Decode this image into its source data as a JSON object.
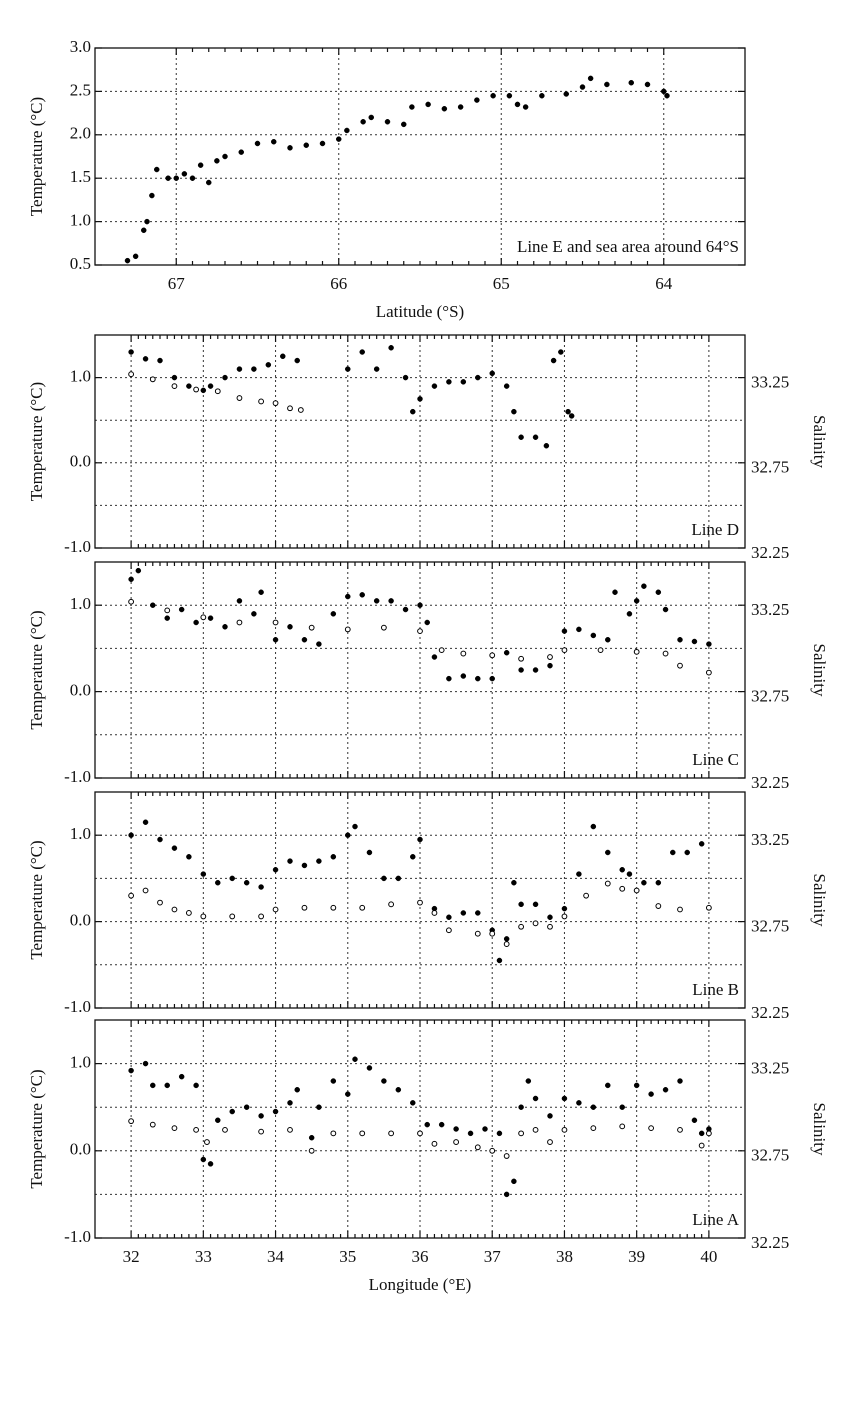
{
  "chart_data": [
    {
      "type": "scatter",
      "xlabel": "Latitude (°S)",
      "ylabel": "Temperature (°C)",
      "annotation": "Line E and sea area around 64°S",
      "xlim": [
        67.5,
        63.5
      ],
      "xticks": [
        67,
        66,
        65,
        64
      ],
      "xtick_labels": true,
      "ylim": [
        0.5,
        3.0
      ],
      "yticks": [
        0.5,
        {
          "value": 1,
          "label": "1.0"
        },
        1.5,
        {
          "value": 2,
          "label": "2.0"
        },
        2.5,
        {
          "value": 3,
          "label": "3.0"
        }
      ],
      "grid": true,
      "minor_grid": false,
      "series": [
        {
          "color": "#000000",
          "marker": "filled",
          "x": [
            67.3,
            67.25,
            67.2,
            67.18,
            67.15,
            67.12,
            67.05,
            67.0,
            66.95,
            66.9,
            66.85,
            66.8,
            66.75,
            66.7,
            66.6,
            66.5,
            66.4,
            66.3,
            66.2,
            66.1,
            66.0,
            65.95,
            65.85,
            65.8,
            65.7,
            65.6,
            65.55,
            65.45,
            65.35,
            65.25,
            65.15,
            65.05,
            64.95,
            64.9,
            64.85,
            64.75,
            64.6,
            64.5,
            64.45,
            64.35,
            64.2,
            64.1,
            64.0,
            63.98
          ],
          "values": [
            0.55,
            0.6,
            0.9,
            1.0,
            1.3,
            1.6,
            1.5,
            1.5,
            1.55,
            1.5,
            1.65,
            1.45,
            1.7,
            1.75,
            1.8,
            1.9,
            1.92,
            1.85,
            1.88,
            1.9,
            1.95,
            2.05,
            2.15,
            2.2,
            2.15,
            2.12,
            2.32,
            2.35,
            2.3,
            2.32,
            2.4,
            2.45,
            2.45,
            2.35,
            2.32,
            2.45,
            2.47,
            2.55,
            2.65,
            2.58,
            2.6,
            2.58,
            2.5,
            2.45
          ]
        }
      ]
    },
    {
      "type": "scatter",
      "ylabel": "Temperature (°C)",
      "y2label": "Salinity",
      "annotation": "Line D",
      "xlim": [
        31.5,
        40.5
      ],
      "xticks": [
        32,
        33,
        34,
        35,
        36,
        37,
        38,
        39,
        40
      ],
      "xtick_labels": false,
      "ylim": [
        -1,
        1.5
      ],
      "yticks": [
        {
          "value": 1,
          "label": "1.0"
        },
        {
          "value": 0,
          "label": "0.0"
        },
        {
          "value": -1,
          "label": "-1.0"
        }
      ],
      "y2lim": [
        32.25,
        33.5
      ],
      "y2ticks": [
        33.25,
        32.75,
        32.25
      ],
      "grid": true,
      "minor_grid": true,
      "series": [
        {
          "color": "#000000",
          "marker": "filled",
          "x": [
            32.0,
            32.2,
            32.4,
            32.6,
            32.8,
            33.0,
            33.1,
            33.3,
            33.5,
            33.7,
            33.9,
            34.1,
            34.3,
            35.0,
            35.2,
            35.4,
            35.6,
            35.8,
            35.9,
            36.0,
            36.2,
            36.4,
            36.6,
            36.8,
            37.0,
            37.2,
            37.3,
            37.4,
            37.6,
            37.75,
            37.85,
            37.95,
            38.05,
            38.1
          ],
          "values": [
            1.3,
            1.22,
            1.2,
            1.0,
            0.9,
            0.85,
            0.9,
            1.0,
            1.1,
            1.1,
            1.15,
            1.25,
            1.2,
            1.1,
            1.3,
            1.1,
            1.35,
            1.0,
            0.6,
            0.75,
            0.9,
            0.95,
            0.95,
            1.0,
            1.05,
            0.9,
            0.6,
            0.3,
            0.3,
            0.2,
            1.2,
            1.3,
            0.6,
            0.55
          ]
        },
        {
          "color": "#000000",
          "marker": "open",
          "axis": "y2",
          "x": [
            32.0,
            32.3,
            32.6,
            32.9,
            33.2,
            33.5,
            33.8,
            34.0,
            34.2,
            34.35
          ],
          "values": [
            33.27,
            33.24,
            33.2,
            33.18,
            33.17,
            33.13,
            33.11,
            33.1,
            33.07,
            33.06
          ]
        }
      ]
    },
    {
      "type": "scatter",
      "ylabel": "Temperature (°C)",
      "y2label": "Salinity",
      "annotation": "Line C",
      "xlim": [
        31.5,
        40.5
      ],
      "xticks": [
        32,
        33,
        34,
        35,
        36,
        37,
        38,
        39,
        40
      ],
      "xtick_labels": false,
      "ylim": [
        -1,
        1.5
      ],
      "yticks": [
        {
          "value": 1,
          "label": "1.0"
        },
        {
          "value": 0,
          "label": "0.0"
        },
        {
          "value": -1,
          "label": "-1.0"
        }
      ],
      "y2lim": [
        32.25,
        33.5
      ],
      "y2ticks": [
        33.25,
        32.75,
        32.25
      ],
      "grid": true,
      "minor_grid": true,
      "series": [
        {
          "color": "#000000",
          "marker": "filled",
          "x": [
            32.0,
            32.1,
            32.3,
            32.5,
            32.7,
            32.9,
            33.1,
            33.3,
            33.5,
            33.7,
            33.8,
            34.0,
            34.2,
            34.4,
            34.6,
            34.8,
            35.0,
            35.2,
            35.4,
            35.6,
            35.8,
            36.0,
            36.1,
            36.2,
            36.4,
            36.6,
            36.8,
            37.0,
            37.2,
            37.4,
            37.6,
            37.8,
            38.0,
            38.2,
            38.4,
            38.6,
            38.7,
            38.9,
            39.0,
            39.1,
            39.3,
            39.4,
            39.6,
            39.8,
            40.0
          ],
          "values": [
            1.3,
            1.4,
            1.0,
            0.85,
            0.95,
            0.8,
            0.85,
            0.75,
            1.05,
            0.9,
            1.15,
            0.6,
            0.75,
            0.6,
            0.55,
            0.9,
            1.1,
            1.12,
            1.05,
            1.05,
            0.95,
            1.0,
            0.8,
            0.4,
            0.15,
            0.18,
            0.15,
            0.15,
            0.45,
            0.25,
            0.25,
            0.3,
            0.7,
            0.72,
            0.65,
            0.6,
            1.15,
            0.9,
            1.05,
            1.22,
            1.15,
            0.95,
            0.6,
            0.58,
            0.55
          ]
        },
        {
          "color": "#000000",
          "marker": "open",
          "axis": "y2",
          "x": [
            32.0,
            32.5,
            33.0,
            33.5,
            34.0,
            34.5,
            35.0,
            35.5,
            36.0,
            36.3,
            36.6,
            37.0,
            37.4,
            37.8,
            38.0,
            38.5,
            39.0,
            39.4,
            39.6,
            40.0
          ],
          "values": [
            33.27,
            33.22,
            33.18,
            33.15,
            33.15,
            33.12,
            33.11,
            33.12,
            33.1,
            32.99,
            32.97,
            32.96,
            32.94,
            32.95,
            32.99,
            32.99,
            32.98,
            32.97,
            32.9,
            32.86
          ]
        }
      ]
    },
    {
      "type": "scatter",
      "ylabel": "Temperature (°C)",
      "y2label": "Salinity",
      "annotation": "Line B",
      "xlim": [
        31.5,
        40.5
      ],
      "xticks": [
        32,
        33,
        34,
        35,
        36,
        37,
        38,
        39,
        40
      ],
      "xtick_labels": false,
      "ylim": [
        -1,
        1.5
      ],
      "yticks": [
        {
          "value": 1,
          "label": "1.0"
        },
        {
          "value": 0,
          "label": "0.0"
        },
        {
          "value": -1,
          "label": "-1.0"
        }
      ],
      "y2lim": [
        32.25,
        33.5
      ],
      "y2ticks": [
        33.25,
        32.75,
        32.25
      ],
      "grid": true,
      "minor_grid": true,
      "series": [
        {
          "color": "#000000",
          "marker": "filled",
          "x": [
            32.0,
            32.2,
            32.4,
            32.6,
            32.8,
            33.0,
            33.2,
            33.4,
            33.6,
            33.8,
            34.0,
            34.2,
            34.4,
            34.6,
            34.8,
            35.0,
            35.1,
            35.3,
            35.5,
            35.7,
            35.9,
            36.0,
            36.2,
            36.4,
            36.6,
            36.8,
            37.0,
            37.1,
            37.2,
            37.3,
            37.4,
            37.6,
            37.8,
            38.0,
            38.2,
            38.4,
            38.6,
            38.8,
            38.9,
            39.1,
            39.3,
            39.5,
            39.7,
            39.9
          ],
          "values": [
            1.0,
            1.15,
            0.95,
            0.85,
            0.75,
            0.55,
            0.45,
            0.5,
            0.45,
            0.4,
            0.6,
            0.7,
            0.65,
            0.7,
            0.75,
            1.0,
            1.1,
            0.8,
            0.5,
            0.5,
            0.75,
            0.95,
            0.15,
            0.05,
            0.1,
            0.1,
            -0.1,
            -0.45,
            -0.2,
            0.45,
            0.2,
            0.2,
            0.05,
            0.15,
            0.55,
            1.1,
            0.8,
            0.6,
            0.55,
            0.45,
            0.45,
            0.8,
            0.8,
            0.9
          ]
        },
        {
          "color": "#000000",
          "marker": "open",
          "axis": "y2",
          "x": [
            32.0,
            32.2,
            32.4,
            32.6,
            32.8,
            33.0,
            33.4,
            33.8,
            34.0,
            34.4,
            34.8,
            35.2,
            35.6,
            36.0,
            36.2,
            36.4,
            36.8,
            37.0,
            37.2,
            37.4,
            37.6,
            37.8,
            38.0,
            38.3,
            38.6,
            38.8,
            39.0,
            39.3,
            39.6,
            40.0
          ],
          "values": [
            32.9,
            32.93,
            32.86,
            32.82,
            32.8,
            32.78,
            32.78,
            32.78,
            32.82,
            32.83,
            32.83,
            32.83,
            32.85,
            32.86,
            32.8,
            32.7,
            32.68,
            32.68,
            32.62,
            32.72,
            32.74,
            32.72,
            32.78,
            32.9,
            32.97,
            32.94,
            32.93,
            32.84,
            32.82,
            32.83
          ]
        }
      ]
    },
    {
      "type": "scatter",
      "xlabel": "Longitude (°E)",
      "ylabel": "Temperature (°C)",
      "y2label": "Salinity",
      "annotation": "Line A",
      "xlim": [
        31.5,
        40.5
      ],
      "xticks": [
        32,
        33,
        34,
        35,
        36,
        37,
        38,
        39,
        40
      ],
      "xtick_labels": true,
      "ylim": [
        -1,
        1.5
      ],
      "yticks": [
        {
          "value": 1,
          "label": "1.0"
        },
        {
          "value": 0,
          "label": "0.0"
        },
        {
          "value": -1,
          "label": "-1.0"
        }
      ],
      "y2lim": [
        32.25,
        33.5
      ],
      "y2ticks": [
        33.25,
        32.75,
        32.25
      ],
      "grid": true,
      "minor_grid": true,
      "series": [
        {
          "color": "#000000",
          "marker": "filled",
          "x": [
            32.0,
            32.2,
            32.3,
            32.5,
            32.7,
            32.9,
            33.0,
            33.1,
            33.2,
            33.4,
            33.6,
            33.8,
            34.0,
            34.2,
            34.3,
            34.5,
            34.6,
            34.8,
            35.0,
            35.1,
            35.3,
            35.5,
            35.7,
            35.9,
            36.1,
            36.3,
            36.5,
            36.7,
            36.9,
            37.1,
            37.2,
            37.3,
            37.4,
            37.5,
            37.6,
            37.8,
            38.0,
            38.2,
            38.4,
            38.6,
            38.8,
            39.0,
            39.2,
            39.4,
            39.6,
            39.8,
            39.9,
            40.0
          ],
          "values": [
            0.92,
            1.0,
            0.75,
            0.75,
            0.85,
            0.75,
            -0.1,
            -0.15,
            0.35,
            0.45,
            0.5,
            0.4,
            0.45,
            0.55,
            0.7,
            0.15,
            0.5,
            0.8,
            0.65,
            1.05,
            0.95,
            0.8,
            0.7,
            0.55,
            0.3,
            0.3,
            0.25,
            0.2,
            0.25,
            0.2,
            -0.5,
            -0.35,
            0.5,
            0.8,
            0.6,
            0.4,
            0.6,
            0.55,
            0.5,
            0.75,
            0.5,
            0.75,
            0.65,
            0.7,
            0.8,
            0.35,
            0.2,
            0.25
          ]
        },
        {
          "color": "#000000",
          "marker": "open",
          "axis": "y2",
          "x": [
            32.0,
            32.3,
            32.6,
            32.9,
            33.05,
            33.3,
            33.8,
            34.2,
            34.5,
            34.8,
            35.2,
            35.6,
            36.0,
            36.2,
            36.5,
            36.8,
            37.0,
            37.2,
            37.4,
            37.6,
            37.8,
            38.0,
            38.4,
            38.8,
            39.2,
            39.6,
            39.9,
            40.0
          ],
          "values": [
            32.92,
            32.9,
            32.88,
            32.87,
            32.8,
            32.87,
            32.86,
            32.87,
            32.75,
            32.85,
            32.85,
            32.85,
            32.85,
            32.79,
            32.8,
            32.77,
            32.75,
            32.72,
            32.85,
            32.87,
            32.8,
            32.87,
            32.88,
            32.89,
            32.88,
            32.87,
            32.78,
            32.85
          ]
        }
      ]
    }
  ]
}
